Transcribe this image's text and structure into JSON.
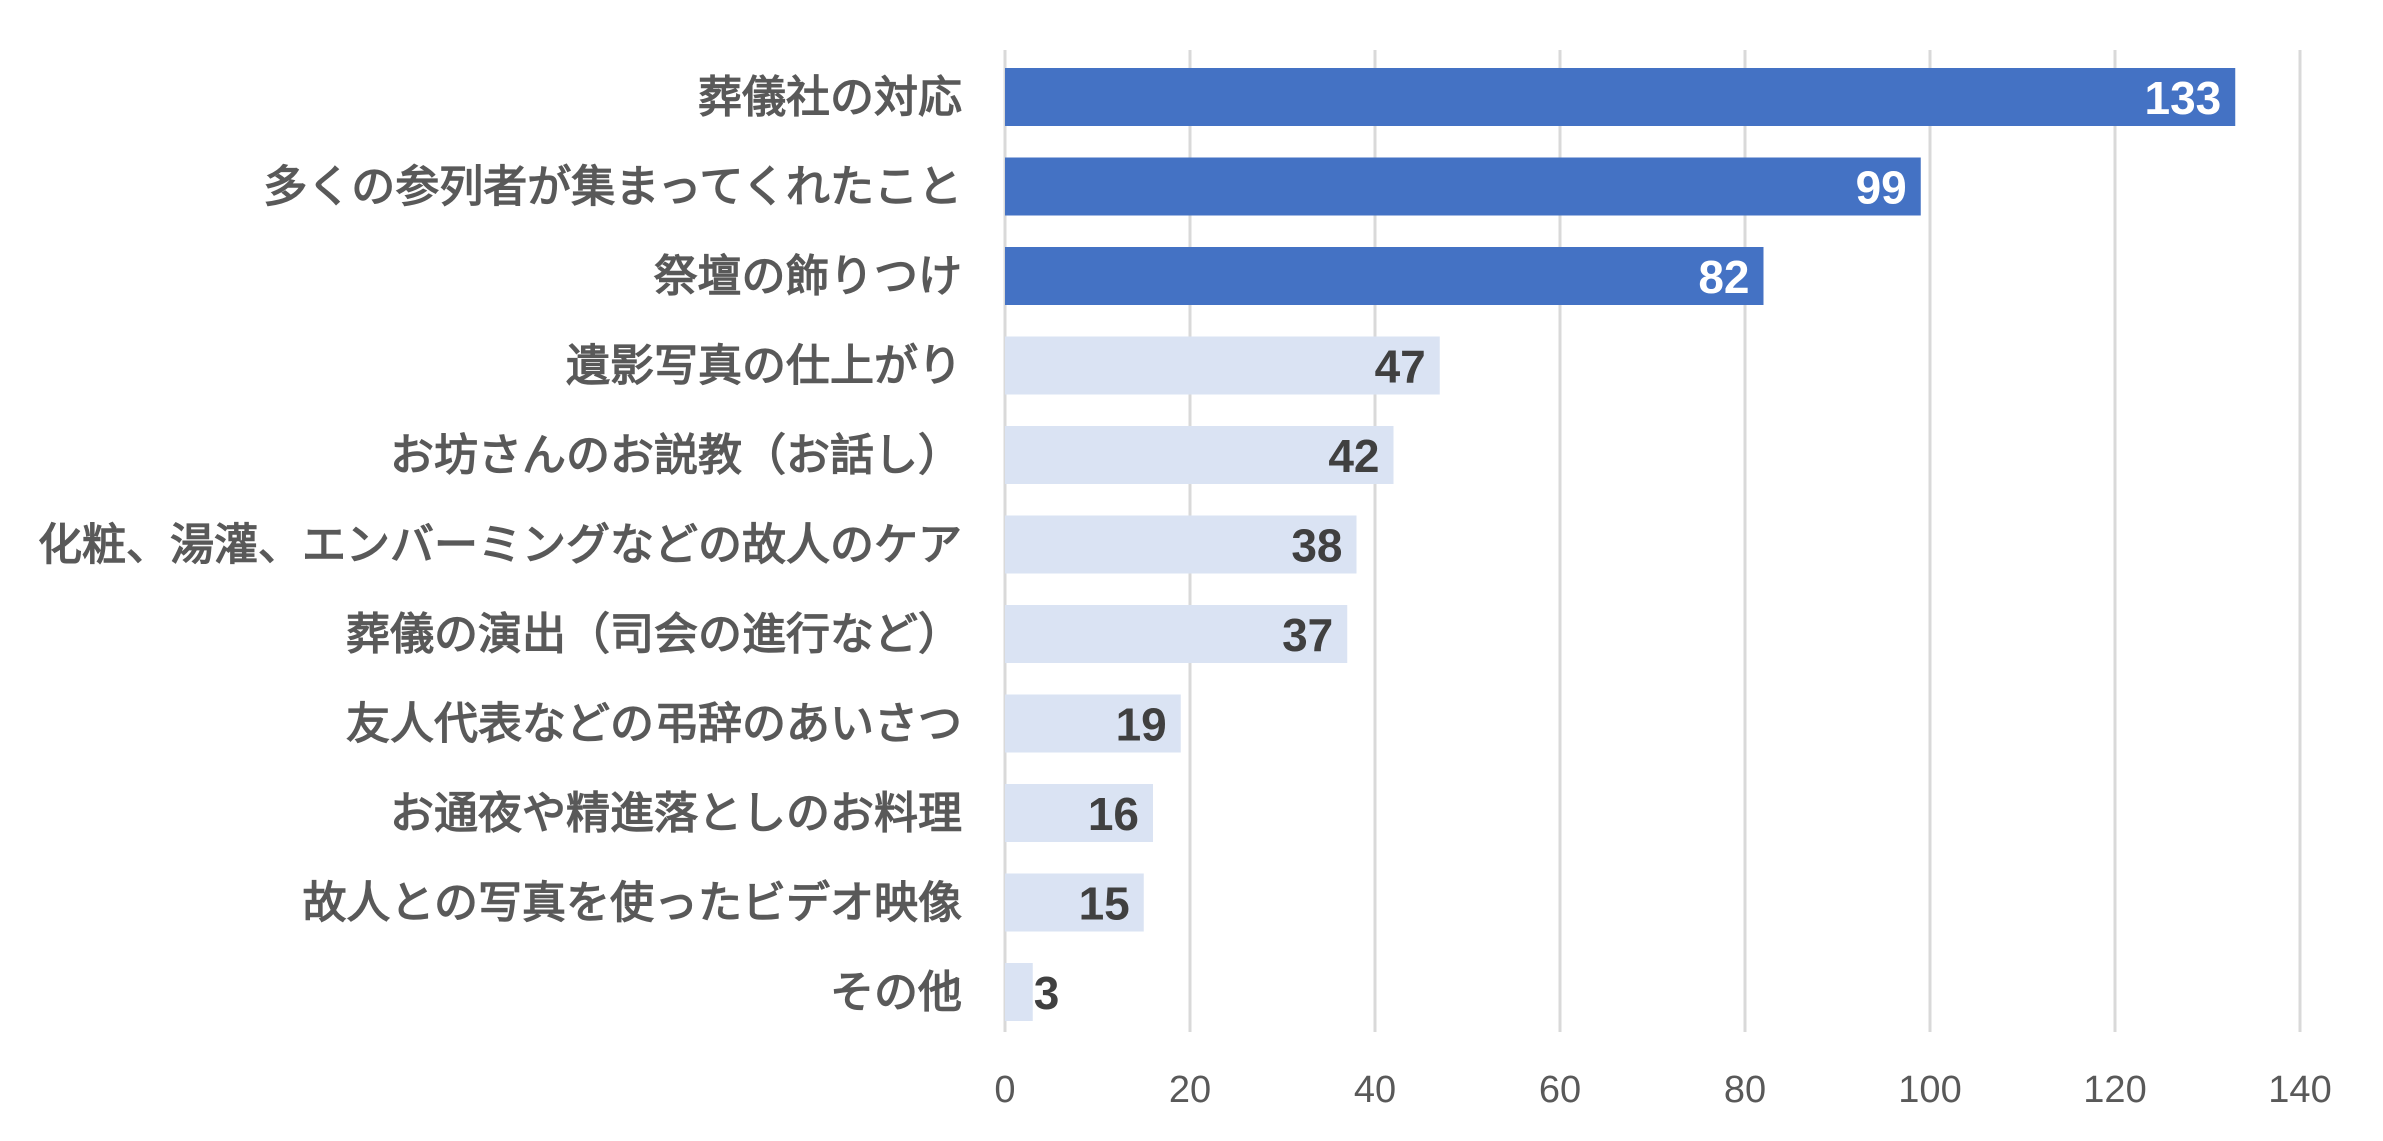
{
  "chart_data": {
    "type": "bar",
    "orientation": "horizontal",
    "categories": [
      "葬儀社の対応",
      "多くの参列者が集まってくれたこと",
      "祭壇の飾りつけ",
      "遺影写真の仕上がり",
      "お坊さんのお説教（お話し）",
      "化粧、湯灌、エンバーミングなどの故人のケア",
      "葬儀の演出（司会の進行など）",
      "友人代表などの弔辞のあいさつ",
      "お通夜や精進落としのお料理",
      "故人との写真を使ったビデオ映像",
      "その他"
    ],
    "values": [
      133,
      99,
      82,
      47,
      42,
      38,
      37,
      19,
      16,
      15,
      3
    ],
    "highlight_top_n": 3,
    "xlim": [
      0,
      140
    ],
    "xticks": [
      0,
      20,
      40,
      60,
      80,
      100,
      120,
      140
    ],
    "grid": true,
    "colors": {
      "highlight_bar": "#4472c4",
      "normal_bar": "#dae3f3",
      "highlight_label": "#ffffff",
      "normal_label": "#404040"
    }
  }
}
